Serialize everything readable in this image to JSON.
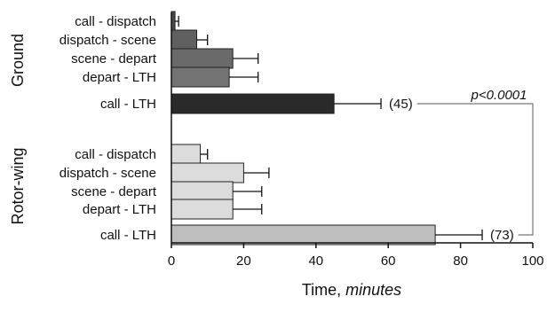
{
  "chart_data": {
    "type": "bar",
    "orientation": "horizontal",
    "xlabel_prefix": "Time, ",
    "xlabel_unit": "minutes",
    "xlim": [
      0,
      100
    ],
    "xticks": [
      0,
      20,
      40,
      60,
      80,
      100
    ],
    "grid": false,
    "groups": [
      {
        "name": "Ground",
        "bars": [
          {
            "label": "call - dispatch",
            "value": 1,
            "error": 1,
            "color": "#4a4a4a"
          },
          {
            "label": "dispatch - scene",
            "value": 7,
            "error": 3,
            "color": "#606060"
          },
          {
            "label": "scene - depart",
            "value": 17,
            "error": 7,
            "color": "#6a6a6a"
          },
          {
            "label": "depart - LTH",
            "value": 16,
            "error": 8,
            "color": "#737373"
          },
          {
            "label": "call - LTH",
            "value": 45,
            "error": 13,
            "color": "#2a2a2a",
            "annotation": "(45)"
          }
        ]
      },
      {
        "name": "Rotor-wing",
        "bars": [
          {
            "label": "call - dispatch",
            "value": 8,
            "error": 2,
            "color": "#dcdcdc"
          },
          {
            "label": "dispatch - scene",
            "value": 20,
            "error": 7,
            "color": "#dcdcdc"
          },
          {
            "label": "scene - depart",
            "value": 17,
            "error": 8,
            "color": "#dcdcdc"
          },
          {
            "label": "depart - LTH",
            "value": 17,
            "error": 8,
            "color": "#dcdcdc"
          },
          {
            "label": "call - LTH",
            "value": 73,
            "error": 13,
            "color": "#bebebe",
            "annotation": "(73)"
          }
        ]
      }
    ],
    "significance": "p<0.0001"
  }
}
